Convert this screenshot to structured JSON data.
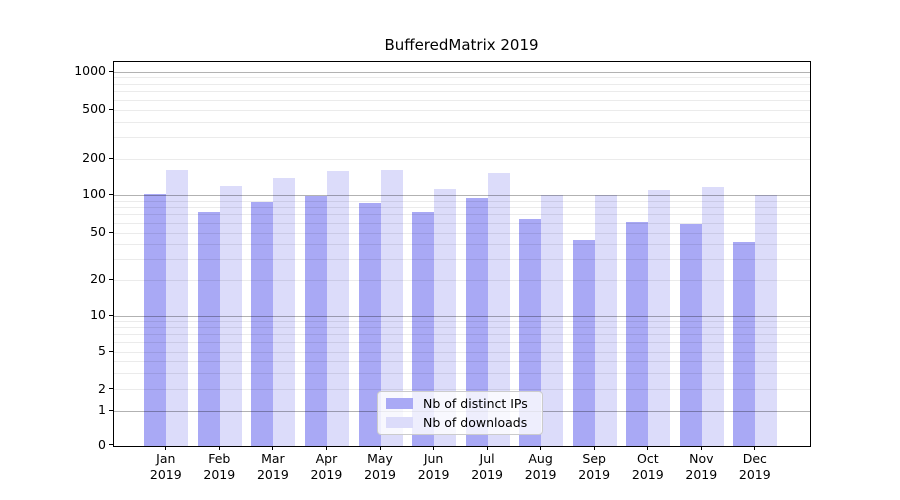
{
  "chart_data": {
    "type": "bar",
    "title": "BufferedMatrix 2019",
    "categories": [
      "Jan",
      "Feb",
      "Mar",
      "Apr",
      "May",
      "Jun",
      "Jul",
      "Aug",
      "Sep",
      "Oct",
      "Nov",
      "Dec"
    ],
    "x_tick_second_line": "2019",
    "series": [
      {
        "name": "Nb of distinct IPs",
        "color": "#a9a9f5",
        "values": [
          103,
          73,
          89,
          99,
          87,
          73,
          95,
          65,
          44,
          61,
          59,
          42
        ]
      },
      {
        "name": "Nb of downloads",
        "color": "#dcdcfa",
        "values": [
          162,
          120,
          141,
          160,
          164,
          112,
          155,
          101,
          100,
          110,
          118,
          100
        ]
      }
    ],
    "y_ticks": [
      0,
      1,
      2,
      5,
      10,
      20,
      50,
      100,
      200,
      500,
      1000
    ],
    "ylim": [
      0,
      1200
    ],
    "y_scale": "log-like with 0 baseline",
    "xlabel": "",
    "ylabel": "",
    "grid": "horizontal major and minor gridlines",
    "legend_position": "lower center"
  },
  "colors": {
    "grid_major": "rgba(0,0,0,0.30)",
    "grid_minor": "rgba(0,0,0,0.08)",
    "spine": "#000000",
    "background": "#ffffff"
  }
}
